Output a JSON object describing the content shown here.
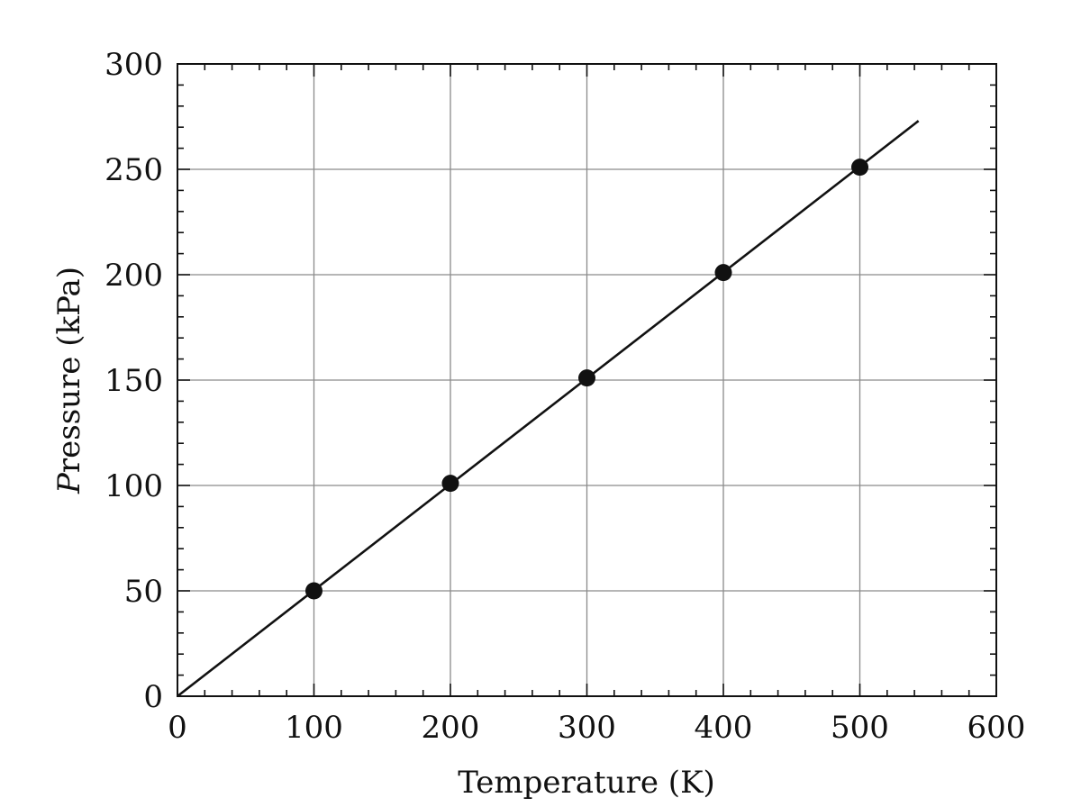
{
  "chart_data": {
    "type": "scatter",
    "title": "",
    "xlabel": "Temperature (K)",
    "ylabel_italic_part": "P",
    "ylabel_rest": "ressure (kPa)",
    "xlim": [
      0,
      600
    ],
    "ylim": [
      0,
      300
    ],
    "x_major_ticks": [
      0,
      100,
      200,
      300,
      400,
      500,
      600
    ],
    "y_major_ticks": [
      0,
      50,
      100,
      150,
      200,
      250,
      300
    ],
    "x_tick_labels": [
      "0",
      "100",
      "200",
      "300",
      "400",
      "500",
      "600"
    ],
    "y_tick_labels": [
      "0",
      "50",
      "100",
      "150",
      "200",
      "250",
      "300"
    ],
    "x_minor_step": 20,
    "y_minor_step": 10,
    "grid": true,
    "series": [
      {
        "points": [
          {
            "x": 100,
            "y": 50
          },
          {
            "x": 200,
            "y": 101
          },
          {
            "x": 300,
            "y": 151
          },
          {
            "x": 400,
            "y": 201
          },
          {
            "x": 500,
            "y": 251
          }
        ]
      }
    ],
    "fit_line": {
      "x": [
        0,
        543
      ],
      "y": [
        0,
        273
      ]
    },
    "colors": {
      "marks": "#111111",
      "grid": "#8a8a8a"
    }
  }
}
